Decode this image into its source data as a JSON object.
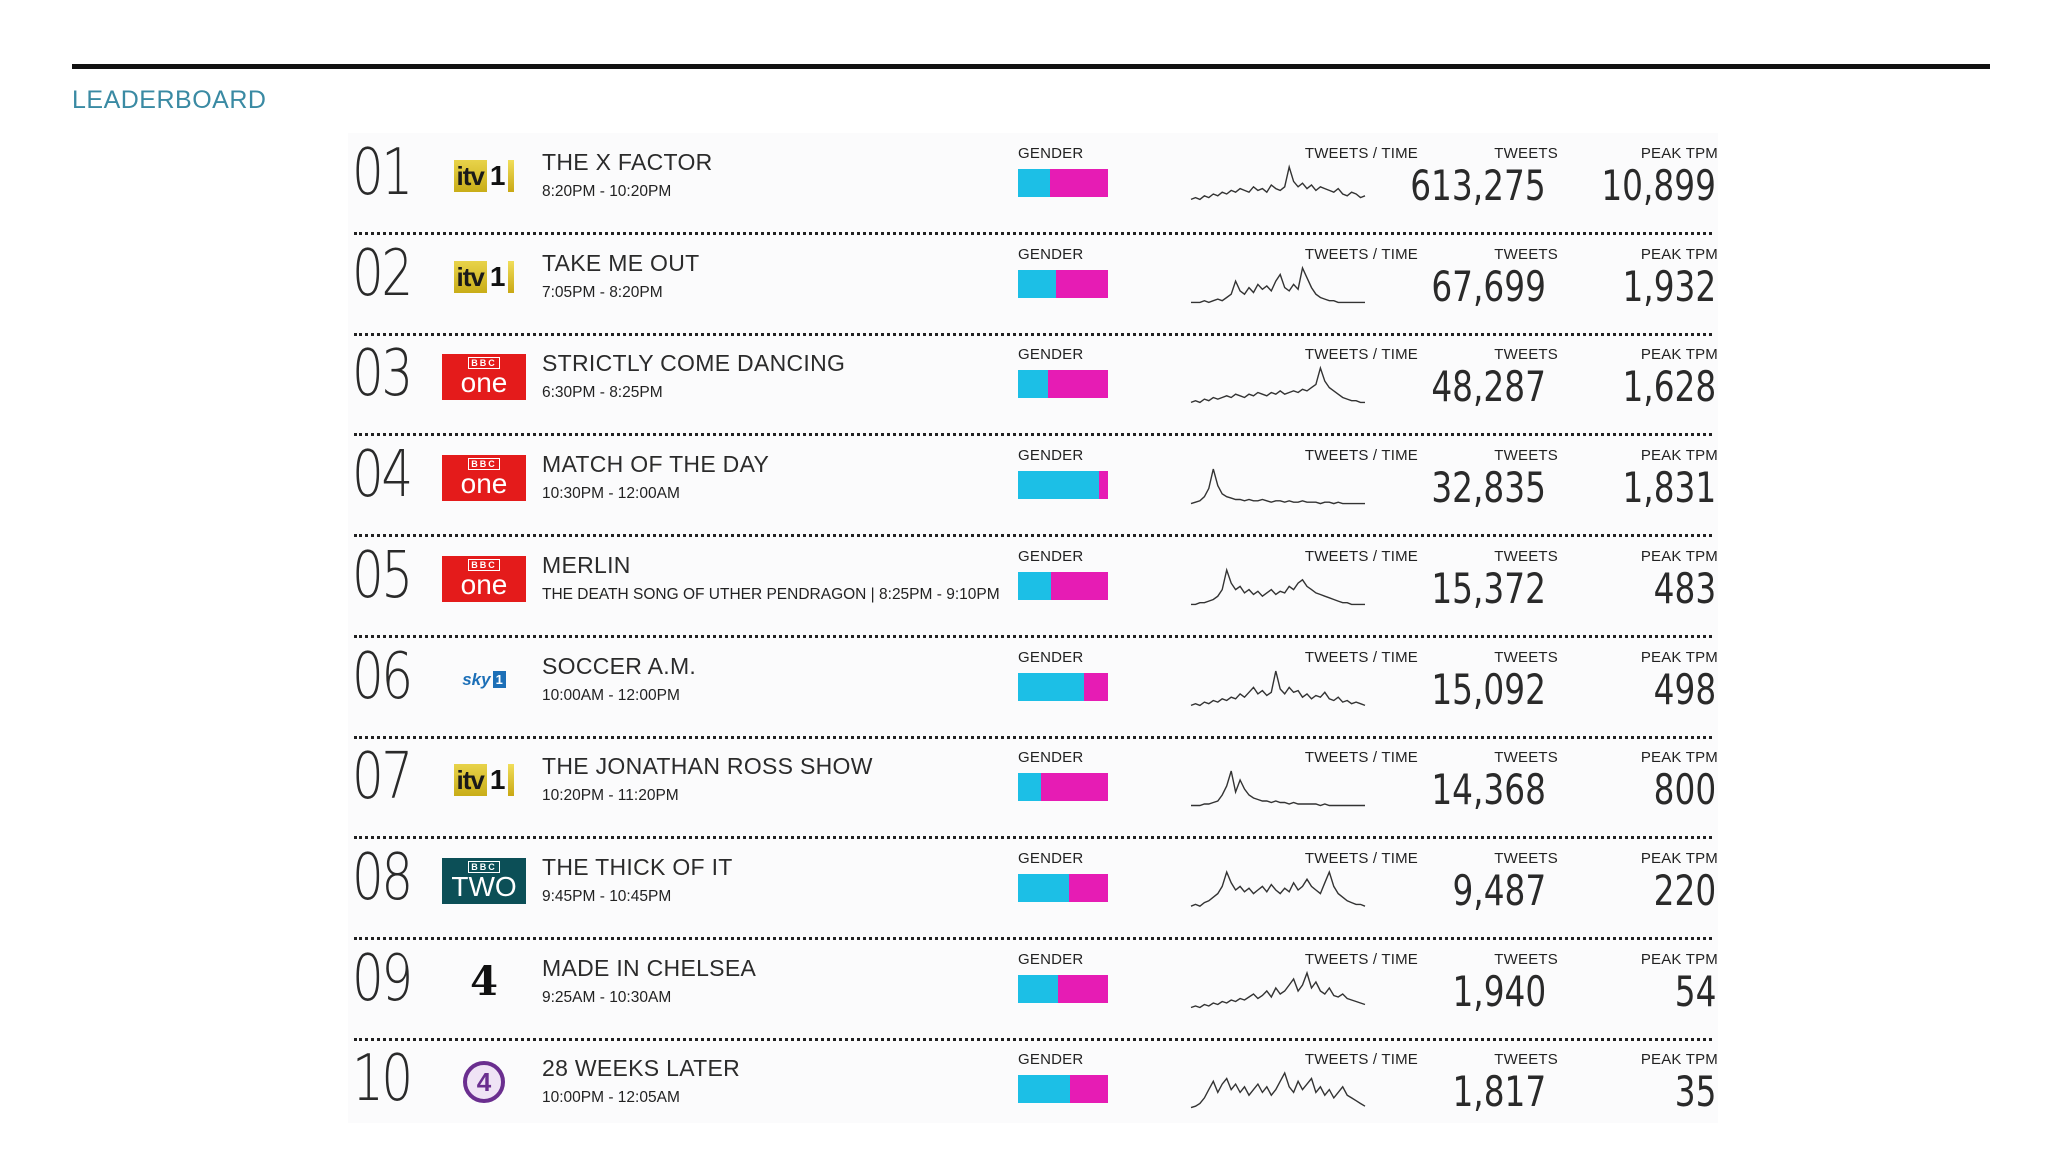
{
  "heading": "LEADERBOARD",
  "colors": {
    "male": "#1cbfe6",
    "female": "#e61cb4",
    "heading": "#3a8aa3"
  },
  "labels": {
    "gender": "GENDER",
    "tweets_time": "TWEETS / TIME",
    "tweets": "TWEETS",
    "peak": "PEAK TPM"
  },
  "rows": [
    {
      "rank": "01",
      "channel": "itv1",
      "logo_icon": "itv1-logo-icon",
      "title": "THE X FACTOR",
      "time": "8:20PM - 10:20PM",
      "male_share": 0.35,
      "tweets": "613,275",
      "peak": "10,899",
      "spark": [
        2,
        3,
        2,
        4,
        3,
        5,
        4,
        6,
        5,
        7,
        6,
        8,
        7,
        6,
        9,
        7,
        8,
        6,
        10,
        8,
        7,
        9,
        20,
        12,
        9,
        11,
        8,
        10,
        7,
        9,
        8,
        7,
        6,
        8,
        5,
        4,
        6,
        5,
        3,
        4
      ]
    },
    {
      "rank": "02",
      "channel": "itv1",
      "logo_icon": "itv1-logo-icon",
      "title": "TAKE ME OUT",
      "time": "7:05PM - 8:20PM",
      "male_share": 0.42,
      "tweets": "67,699",
      "peak": "1,932",
      "spark": [
        1,
        1,
        1,
        2,
        1,
        2,
        3,
        2,
        4,
        6,
        14,
        8,
        6,
        10,
        7,
        12,
        9,
        11,
        8,
        14,
        18,
        10,
        8,
        12,
        9,
        22,
        16,
        10,
        6,
        4,
        3,
        2,
        2,
        1,
        1,
        1,
        1,
        1,
        1,
        1
      ]
    },
    {
      "rank": "03",
      "channel": "bbc-one",
      "logo_icon": "bbc-one-logo-icon",
      "title": "STRICTLY COME DANCING",
      "time": "6:30PM - 8:25PM",
      "male_share": 0.33,
      "tweets": "48,287",
      "peak": "1,628",
      "spark": [
        1,
        2,
        1,
        3,
        2,
        4,
        3,
        4,
        5,
        4,
        6,
        5,
        4,
        6,
        5,
        7,
        6,
        5,
        7,
        6,
        8,
        6,
        7,
        8,
        7,
        9,
        8,
        10,
        12,
        22,
        14,
        10,
        8,
        6,
        4,
        3,
        2,
        2,
        1,
        1
      ]
    },
    {
      "rank": "04",
      "channel": "bbc-one",
      "logo_icon": "bbc-one-logo-icon",
      "title": "MATCH OF THE DAY",
      "time": "10:30PM - 12:00AM",
      "male_share": 0.9,
      "tweets": "32,835",
      "peak": "1,831",
      "spark": [
        1,
        2,
        3,
        6,
        12,
        26,
        14,
        8,
        6,
        5,
        4,
        4,
        3,
        4,
        3,
        3,
        4,
        3,
        2,
        3,
        3,
        2,
        3,
        2,
        2,
        3,
        2,
        2,
        2,
        1,
        2,
        2,
        1,
        2,
        1,
        1,
        1,
        1,
        1,
        1
      ]
    },
    {
      "rank": "05",
      "channel": "bbc-one",
      "logo_icon": "bbc-one-logo-icon",
      "title": "MERLIN",
      "time": "THE DEATH SONG OF UTHER PENDRAGON | 8:25PM - 9:10PM",
      "male_share": 0.37,
      "tweets": "15,372",
      "peak": "483",
      "spark": [
        1,
        1,
        2,
        2,
        3,
        4,
        6,
        10,
        22,
        14,
        10,
        12,
        8,
        10,
        7,
        9,
        6,
        8,
        10,
        7,
        9,
        8,
        12,
        10,
        14,
        16,
        12,
        10,
        8,
        7,
        6,
        5,
        4,
        3,
        2,
        2,
        1,
        1,
        1,
        1
      ]
    },
    {
      "rank": "06",
      "channel": "sky-1",
      "logo_icon": "sky1-logo-icon",
      "title": "SOCCER A.M.",
      "time": "10:00AM - 12:00PM",
      "male_share": 0.73,
      "tweets": "15,092",
      "peak": "498",
      "spark": [
        1,
        2,
        1,
        3,
        2,
        4,
        3,
        5,
        4,
        6,
        5,
        8,
        6,
        9,
        12,
        8,
        10,
        7,
        9,
        22,
        11,
        8,
        12,
        9,
        10,
        6,
        8,
        5,
        7,
        6,
        9,
        5,
        4,
        6,
        3,
        4,
        2,
        3,
        2,
        1
      ]
    },
    {
      "rank": "07",
      "channel": "itv1",
      "logo_icon": "itv1-logo-icon",
      "title": "THE JONATHAN ROSS SHOW",
      "time": "10:20PM - 11:20PM",
      "male_share": 0.26,
      "tweets": "14,368",
      "peak": "800",
      "spark": [
        1,
        1,
        1,
        2,
        2,
        3,
        4,
        8,
        14,
        24,
        10,
        18,
        12,
        8,
        6,
        5,
        4,
        4,
        3,
        4,
        3,
        3,
        2,
        3,
        2,
        2,
        2,
        2,
        2,
        1,
        2,
        1,
        1,
        1,
        1,
        1,
        1,
        1,
        1,
        1
      ]
    },
    {
      "rank": "08",
      "channel": "bbc-two",
      "logo_icon": "bbc-two-logo-icon",
      "title": "THE THICK OF IT",
      "time": "9:45PM - 10:45PM",
      "male_share": 0.57,
      "tweets": "9,487",
      "peak": "220",
      "spark": [
        1,
        2,
        1,
        3,
        4,
        6,
        8,
        12,
        20,
        14,
        10,
        12,
        9,
        11,
        8,
        10,
        12,
        9,
        13,
        10,
        8,
        11,
        9,
        14,
        10,
        12,
        16,
        12,
        10,
        8,
        14,
        20,
        12,
        8,
        6,
        4,
        3,
        2,
        2,
        1
      ]
    },
    {
      "rank": "09",
      "channel": "channel-4",
      "logo_icon": "channel4-logo-icon",
      "title": "MADE IN CHELSEA",
      "time": "9:25AM - 10:30AM",
      "male_share": 0.44,
      "tweets": "1,940",
      "peak": "54",
      "spark": [
        1,
        2,
        1,
        3,
        2,
        4,
        3,
        5,
        4,
        6,
        5,
        7,
        6,
        8,
        10,
        7,
        9,
        12,
        8,
        14,
        10,
        12,
        16,
        20,
        12,
        16,
        24,
        14,
        18,
        12,
        10,
        14,
        9,
        8,
        10,
        7,
        6,
        5,
        4,
        3
      ]
    },
    {
      "rank": "10",
      "channel": "e4",
      "logo_icon": "e4-logo-icon",
      "title": "28 WEEKS LATER",
      "time": "10:00PM - 12:05AM",
      "male_share": 0.58,
      "tweets": "1,817",
      "peak": "35",
      "spark": [
        1,
        2,
        4,
        8,
        14,
        20,
        12,
        18,
        22,
        14,
        18,
        12,
        16,
        10,
        14,
        18,
        12,
        16,
        10,
        14,
        20,
        26,
        16,
        12,
        20,
        14,
        18,
        22,
        12,
        16,
        10,
        14,
        8,
        12,
        16,
        10,
        8,
        6,
        4,
        2
      ]
    }
  ]
}
